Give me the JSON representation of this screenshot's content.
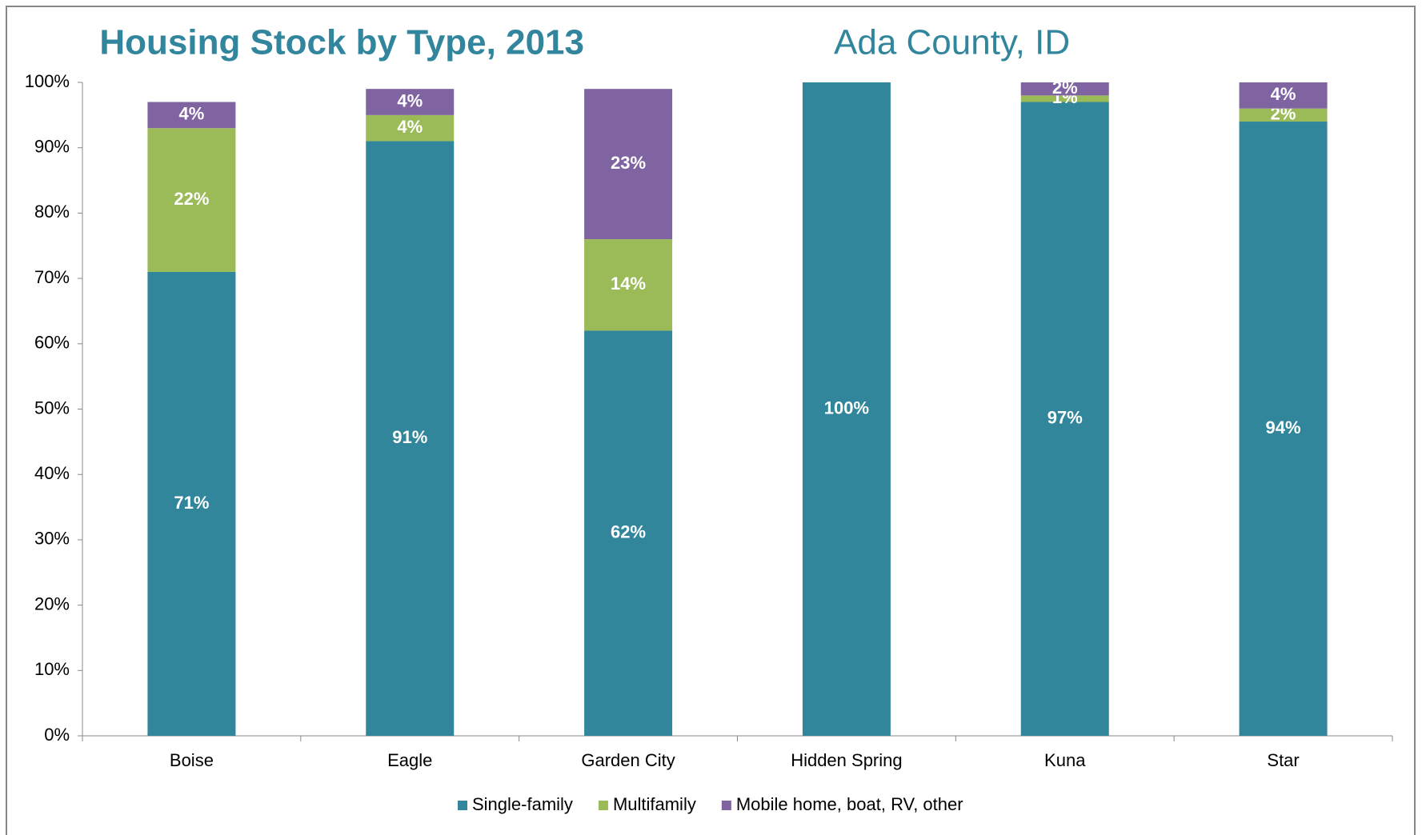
{
  "chart_data": {
    "type": "stacked_bar",
    "title": "Housing Stock by Type, 2013",
    "subtitle": "Ada County, ID",
    "categories": [
      "Boise",
      "Eagle",
      "Garden City",
      "Hidden Spring",
      "Kuna",
      "Star"
    ],
    "series": [
      {
        "name": "Single-family",
        "color": "#31869b",
        "values": [
          71,
          91,
          62,
          100,
          97,
          94
        ],
        "value_labels": [
          "71%",
          "91%",
          "62%",
          "100%",
          "97%",
          "94%"
        ]
      },
      {
        "name": "Multifamily",
        "color": "#9bbb59",
        "values": [
          22,
          4,
          14,
          0,
          1,
          2
        ],
        "value_labels": [
          "22%",
          "4%",
          "14%",
          null,
          "1%",
          "2%"
        ]
      },
      {
        "name": "Mobile home, boat, RV, other",
        "color": "#8064a2",
        "values": [
          4,
          4,
          23,
          0,
          2,
          4
        ],
        "value_labels": [
          "4%",
          "4%",
          "23%",
          null,
          "2%",
          "4%"
        ]
      }
    ],
    "ylim": [
      0,
      100
    ],
    "yticks": [
      {
        "value": 0,
        "label": "0%"
      },
      {
        "value": 10,
        "label": "10%"
      },
      {
        "value": 20,
        "label": "20%"
      },
      {
        "value": 30,
        "label": "30%"
      },
      {
        "value": 40,
        "label": "40%"
      },
      {
        "value": 50,
        "label": "50%"
      },
      {
        "value": 60,
        "label": "60%"
      },
      {
        "value": 70,
        "label": "70%"
      },
      {
        "value": 80,
        "label": "80%"
      },
      {
        "value": 90,
        "label": "90%"
      },
      {
        "value": 100,
        "label": "100%"
      }
    ],
    "legend": "bottom"
  }
}
